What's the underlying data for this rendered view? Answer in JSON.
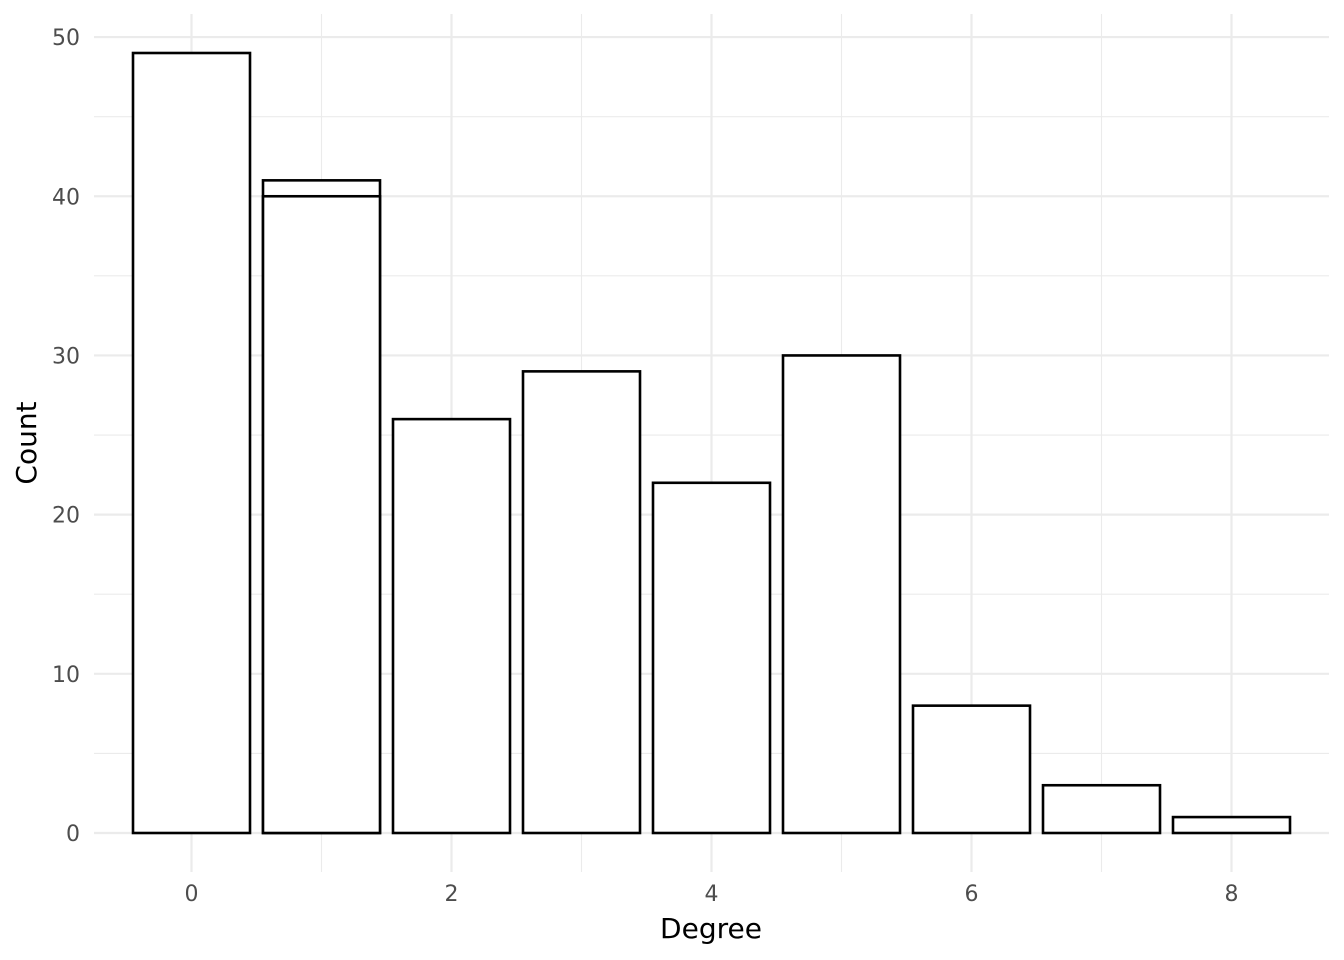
{
  "chart_data": {
    "type": "bar",
    "x": [
      0,
      1,
      1,
      2,
      3,
      4,
      5,
      6,
      7,
      8
    ],
    "values": [
      49,
      41,
      40,
      26,
      29,
      22,
      30,
      8,
      3,
      1
    ],
    "xlabel": "Degree",
    "ylabel": "Count",
    "xlim": [
      -0.75,
      8.75
    ],
    "ylim": [
      -2.45,
      51.45
    ],
    "x_ticks": [
      "0",
      "2",
      "4",
      "6",
      "8"
    ],
    "y_ticks": [
      "0",
      "10",
      "20",
      "30",
      "40",
      "50"
    ],
    "grid": true,
    "bar_fill": "#ffffff",
    "bar_outline": "#000000",
    "grid_color": "#ebebeb"
  }
}
